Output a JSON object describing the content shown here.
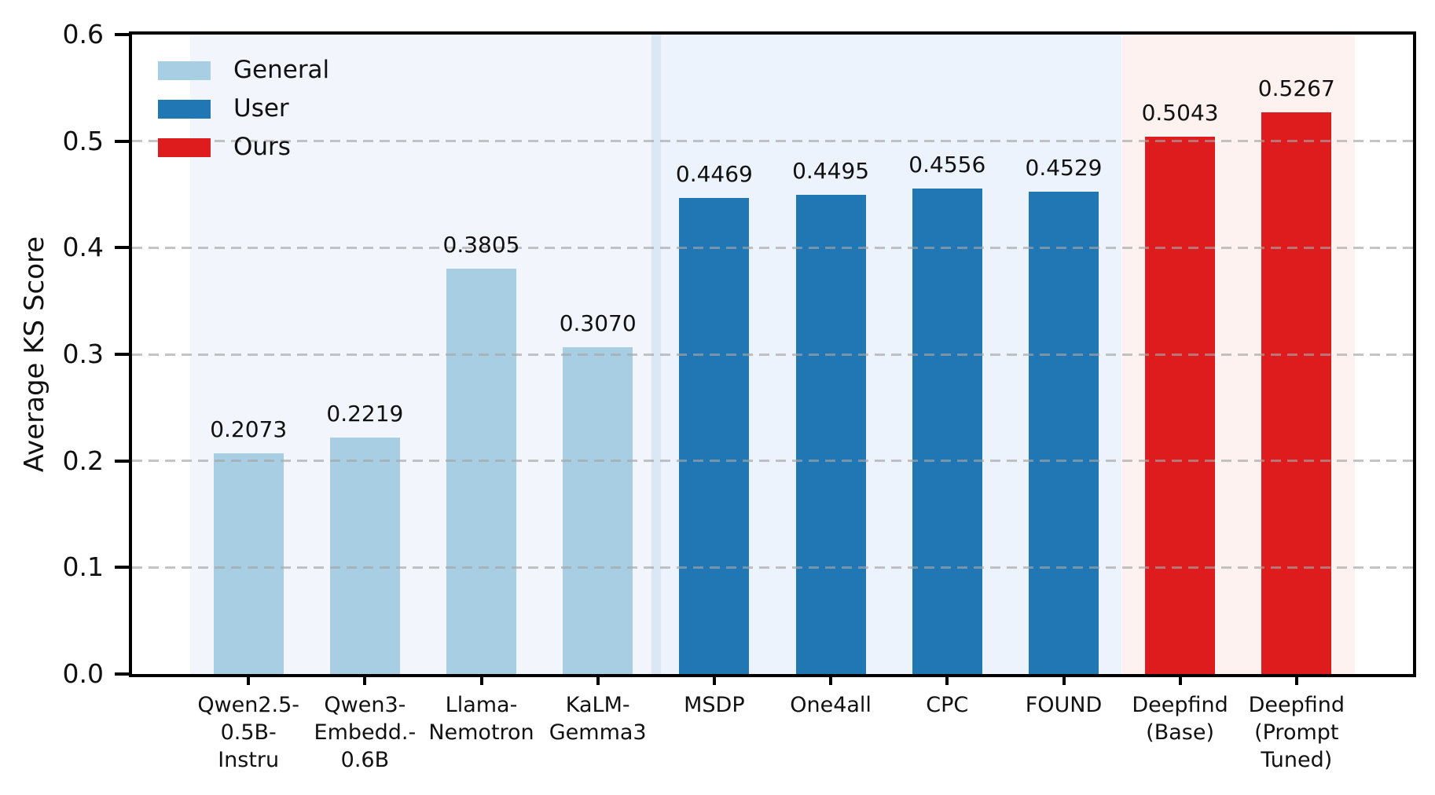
{
  "chart_data": {
    "type": "bar",
    "title": "",
    "xlabel": "",
    "ylabel": "Average KS Score",
    "ylim": [
      0.0,
      0.6
    ],
    "xlim": [
      -1,
      10
    ],
    "ytick_labels": [
      "0.0",
      "0.1",
      "0.2",
      "0.3",
      "0.4",
      "0.5",
      "0.6"
    ],
    "grid": {
      "style": "dashed",
      "axis": "y",
      "color": "#cccccc"
    },
    "legend": {
      "position": "upper left",
      "entries": [
        {
          "label": "General",
          "color": "#a7cee3"
        },
        {
          "label": "User",
          "color": "#2077b4"
        },
        {
          "label": "Ours",
          "color": "#de1c1e"
        }
      ]
    },
    "bars": [
      {
        "category": "Qwen2.5-\n0.5B-\nInstru",
        "value": 0.2073,
        "label": "0.2073",
        "series": "General"
      },
      {
        "category": "Qwen3-\nEmbedd.-\n0.6B",
        "value": 0.2219,
        "label": "0.2219",
        "series": "General"
      },
      {
        "category": "Llama-\nNemotron",
        "value": 0.3805,
        "label": "0.3805",
        "series": "General"
      },
      {
        "category": "KaLM-\nGemma3",
        "value": 0.307,
        "label": "0.3070",
        "series": "General"
      },
      {
        "category": "MSDP",
        "value": 0.4469,
        "label": "0.4469",
        "series": "User"
      },
      {
        "category": "One4all",
        "value": 0.4495,
        "label": "0.4495",
        "series": "User"
      },
      {
        "category": "CPC",
        "value": 0.4556,
        "label": "0.4556",
        "series": "User"
      },
      {
        "category": "FOUND",
        "value": 0.4529,
        "label": "0.4529",
        "series": "User"
      },
      {
        "category": "Deepfind\n(Base)",
        "value": 0.5043,
        "label": "0.5043",
        "series": "Ours"
      },
      {
        "category": "Deepfind\n(Prompt\nTuned)",
        "value": 0.5267,
        "label": "0.5267",
        "series": "Ours"
      }
    ],
    "bands": [
      {
        "series": "General",
        "from": -0.5,
        "to": 3.5,
        "color": "#f2f5fb"
      },
      {
        "series": "User",
        "from": 3.5,
        "to": 7.5,
        "color": "#ecf3fd"
      },
      {
        "series": "Ours",
        "from": 7.5,
        "to": 9.5,
        "color": "#fdf2ef"
      }
    ]
  }
}
